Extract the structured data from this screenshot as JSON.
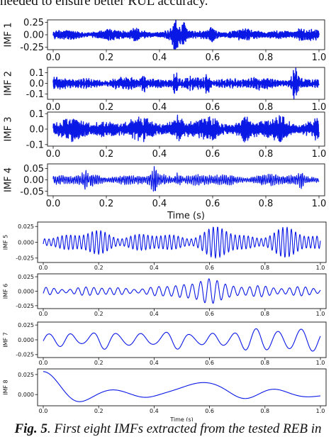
{
  "document": {
    "top_text": "needed to ensure better RUL accuracy.",
    "caption_label": "Fig. 5",
    "caption_text": "First eight IMFs extracted from the tested REB in"
  },
  "colors": {
    "signal": "#0a18e6",
    "axes": "#111111"
  },
  "chart_data": [
    {
      "type": "line",
      "series_name": "IMF 1",
      "ylabel": "IMF 1",
      "xlabel": "",
      "xlim": [
        0.0,
        1.0
      ],
      "ylim": [
        -0.3,
        0.3
      ],
      "xticks": [
        "0.0",
        "0.2",
        "0.4",
        "0.6",
        "0.8",
        "1.0"
      ],
      "yticks": [
        {
          "v": 0.25,
          "t": "0.25"
        },
        {
          "v": 0.0,
          "t": "0.00"
        },
        {
          "v": -0.25,
          "t": "-0.25"
        }
      ],
      "signal": {
        "kind": "noise",
        "amp": 0.08,
        "cycles": 900,
        "bursts": [
          [
            0.46,
            0.24
          ],
          [
            0.49,
            0.14
          ],
          [
            0.6,
            0.1
          ],
          [
            0.31,
            0.08
          ],
          [
            0.93,
            0.07
          ]
        ]
      }
    },
    {
      "type": "line",
      "series_name": "IMF 2",
      "ylabel": "IMF 2",
      "xlabel": "",
      "xlim": [
        0.0,
        1.0
      ],
      "ylim": [
        -0.15,
        0.15
      ],
      "xticks": [
        "0.0",
        "0.2",
        "0.4",
        "0.6",
        "0.8",
        "1.0"
      ],
      "yticks": [
        {
          "v": 0.1,
          "t": "0.1"
        },
        {
          "v": 0.0,
          "t": "0.0"
        },
        {
          "v": -0.1,
          "t": "-0.1"
        }
      ],
      "signal": {
        "kind": "noise",
        "amp": 0.045,
        "cycles": 650,
        "bursts": [
          [
            0.91,
            0.12
          ],
          [
            0.46,
            0.07
          ],
          [
            0.58,
            0.06
          ],
          [
            0.34,
            0.05
          ]
        ]
      }
    },
    {
      "type": "line",
      "series_name": "IMF 3",
      "ylabel": "IMF 3",
      "xlabel": "",
      "xlim": [
        0.0,
        1.0
      ],
      "ylim": [
        -0.11,
        0.11
      ],
      "xticks": [
        "0.0",
        "0.2",
        "0.4",
        "0.6",
        "0.8",
        "1.0"
      ],
      "yticks": [
        {
          "v": 0.1,
          "t": "0.1"
        },
        {
          "v": 0.0,
          "t": "0.0"
        },
        {
          "v": -0.1,
          "t": "-0.1"
        }
      ],
      "signal": {
        "kind": "noise",
        "amp": 0.055,
        "cycles": 240,
        "bursts": [
          [
            0.47,
            0.03
          ],
          [
            0.86,
            0.04
          ],
          [
            0.72,
            0.03
          ]
        ]
      }
    },
    {
      "type": "line",
      "series_name": "IMF 4",
      "ylabel": "IMF 4",
      "xlabel": "Time (s)",
      "xlim": [
        0.0,
        1.0
      ],
      "ylim": [
        -0.07,
        0.07
      ],
      "xticks": [
        "0.0",
        "0.2",
        "0.4",
        "0.6",
        "0.8",
        "1.0"
      ],
      "yticks": [
        {
          "v": 0.05,
          "t": "0.05"
        },
        {
          "v": 0.0,
          "t": "0.00"
        },
        {
          "v": -0.05,
          "t": "-0.05"
        }
      ],
      "signal": {
        "kind": "noise",
        "amp": 0.02,
        "cycles": 140,
        "bursts": [
          [
            0.38,
            0.04
          ],
          [
            0.12,
            0.015
          ],
          [
            0.47,
            0.02
          ],
          [
            0.93,
            0.02
          ]
        ]
      }
    },
    {
      "type": "line",
      "series_name": "IMF 5",
      "ylabel": "IMF 5",
      "xlabel": "",
      "xlim": [
        0.0,
        1.0
      ],
      "ylim": [
        -0.032,
        0.032
      ],
      "xticks": [
        "0.0",
        "0.2",
        "0.4",
        "0.6",
        "0.8",
        "1.0"
      ],
      "yticks": [
        {
          "v": 0.025,
          "t": "0.025"
        },
        {
          "v": 0.0,
          "t": "0.000"
        },
        {
          "v": -0.025,
          "t": "-0.025"
        }
      ],
      "signal": {
        "kind": "wave",
        "amp": 0.011,
        "cycles": 64,
        "bursts": [
          [
            0.63,
            0.012
          ],
          [
            0.88,
            0.01
          ],
          [
            0.2,
            0.006
          ]
        ]
      }
    },
    {
      "type": "line",
      "series_name": "IMF 6",
      "ylabel": "IMF 6",
      "xlabel": "",
      "xlim": [
        0.0,
        1.0
      ],
      "ylim": [
        -0.03,
        0.03
      ],
      "xticks": [
        "0.0",
        "0.2",
        "0.4",
        "0.6",
        "0.8",
        "1.0"
      ],
      "yticks": [
        {
          "v": 0.025,
          "t": "0.025"
        },
        {
          "v": 0.0,
          "t": "0.000"
        },
        {
          "v": -0.025,
          "t": "-0.025"
        }
      ],
      "signal": {
        "kind": "wave",
        "amp": 0.006,
        "cycles": 34,
        "bursts": [
          [
            0.6,
            0.018
          ],
          [
            0.5,
            0.006
          ],
          [
            0.77,
            0.005
          ]
        ]
      }
    },
    {
      "type": "line",
      "series_name": "IMF 7",
      "ylabel": "IMF 7",
      "xlabel": "",
      "xlim": [
        0.0,
        1.0
      ],
      "ylim": [
        -0.03,
        0.03
      ],
      "xticks": [
        "0.0",
        "0.2",
        "0.4",
        "0.6",
        "0.8",
        "1.0"
      ],
      "yticks": [
        {
          "v": 0.025,
          "t": "0.025"
        },
        {
          "v": 0.0,
          "t": "0.000"
        },
        {
          "v": -0.025,
          "t": "-0.025"
        }
      ],
      "signal": {
        "kind": "wave",
        "amp": 0.012,
        "cycles": 12,
        "bursts": [
          [
            0.8,
            0.011
          ],
          [
            0.94,
            0.008
          ]
        ]
      }
    },
    {
      "type": "line",
      "series_name": "IMF 8",
      "ylabel": "IMF 8",
      "xlabel": "Time (s)",
      "xlim": [
        0.0,
        1.0
      ],
      "ylim": [
        -0.014,
        0.032
      ],
      "xticks": [
        "0.0",
        "0.2",
        "0.4",
        "0.6",
        "0.8",
        "1.0"
      ],
      "yticks": [
        {
          "v": 0.025,
          "t": "0.025"
        },
        {
          "v": 0.0,
          "t": "0.000"
        }
      ],
      "signal": {
        "kind": "imf8"
      }
    }
  ]
}
